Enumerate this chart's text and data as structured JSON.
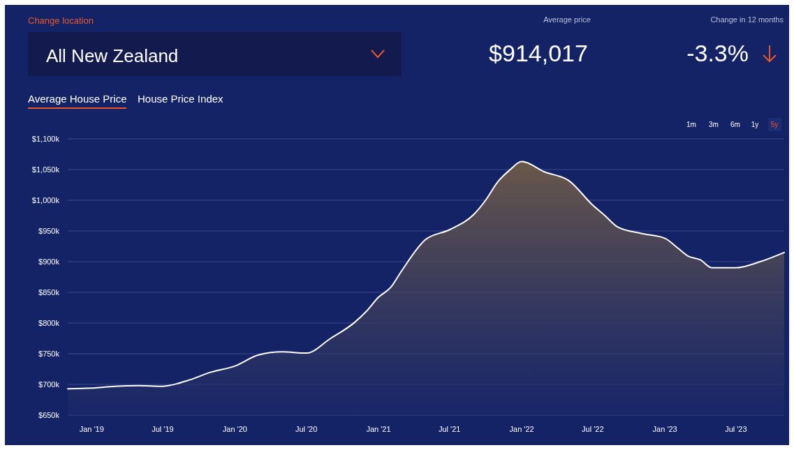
{
  "chart_data": {
    "type": "area",
    "annotations": [
      "Change location",
      "All New Zealand",
      "Average price",
      "$914,017",
      "Change in 12 months",
      "-3.3%",
      "Average House Price",
      "House Price Index",
      "1m",
      "3m",
      "6m",
      "1y",
      "5y"
    ],
    "x": [
      "2018-11",
      "2019-01",
      "2019-03",
      "2019-05",
      "2019-07",
      "2019-09",
      "2019-11",
      "2020-01",
      "2020-03",
      "2020-05",
      "2020-07",
      "2020-09",
      "2020-11",
      "2020-12",
      "2021-01",
      "2021-02",
      "2021-03",
      "2021-05",
      "2021-07",
      "2021-09",
      "2021-10",
      "2021-11",
      "2021-12",
      "2022-01",
      "2022-03",
      "2022-05",
      "2022-07",
      "2022-08",
      "2022-09",
      "2022-11",
      "2023-01",
      "2023-02",
      "2023-03",
      "2023-04",
      "2023-05",
      "2023-07",
      "2023-09",
      "2023-11"
    ],
    "series": [
      {
        "color": "#ffffff",
        "values": [
          693,
          694,
          697,
          698,
          697,
          706,
          720,
          730,
          748,
          753,
          751,
          775,
          801,
          819,
          842,
          858,
          885,
          936,
          952,
          977,
          1000,
          1030,
          1049,
          1063,
          1046,
          1032,
          992,
          975,
          957,
          946,
          938,
          923,
          909,
          903,
          890,
          890,
          900,
          915
        ]
      }
    ],
    "xlim": [
      "2018-11",
      "2023-11"
    ],
    "xticks": [
      {
        "value": "2019-01",
        "label": "Jan '19"
      },
      {
        "value": "2019-07",
        "label": "Jul '19"
      },
      {
        "value": "2020-01",
        "label": "Jan '20"
      },
      {
        "value": "2020-07",
        "label": "Jul '20"
      },
      {
        "value": "2021-01",
        "label": "Jan '21"
      },
      {
        "value": "2021-07",
        "label": "Jul '21"
      },
      {
        "value": "2022-01",
        "label": "Jan '22"
      },
      {
        "value": "2022-07",
        "label": "Jul '22"
      },
      {
        "value": "2023-01",
        "label": "Jan '23"
      },
      {
        "value": "2023-07",
        "label": "Jul '23"
      }
    ],
    "ylim": [
      650,
      1100
    ],
    "yticks": [
      {
        "value": 650,
        "label": "$650k"
      },
      {
        "value": 700,
        "label": "$700k"
      },
      {
        "value": 750,
        "label": "$750k"
      },
      {
        "value": 800,
        "label": "$800k"
      },
      {
        "value": 850,
        "label": "$850k"
      },
      {
        "value": 900,
        "label": "$900k"
      },
      {
        "value": 950,
        "label": "$950k"
      },
      {
        "value": 1000,
        "label": "$1,000k"
      },
      {
        "value": 1050,
        "label": "$1,050k"
      },
      {
        "value": 1100,
        "label": "$1,100k"
      }
    ],
    "grid": "y"
  }
}
